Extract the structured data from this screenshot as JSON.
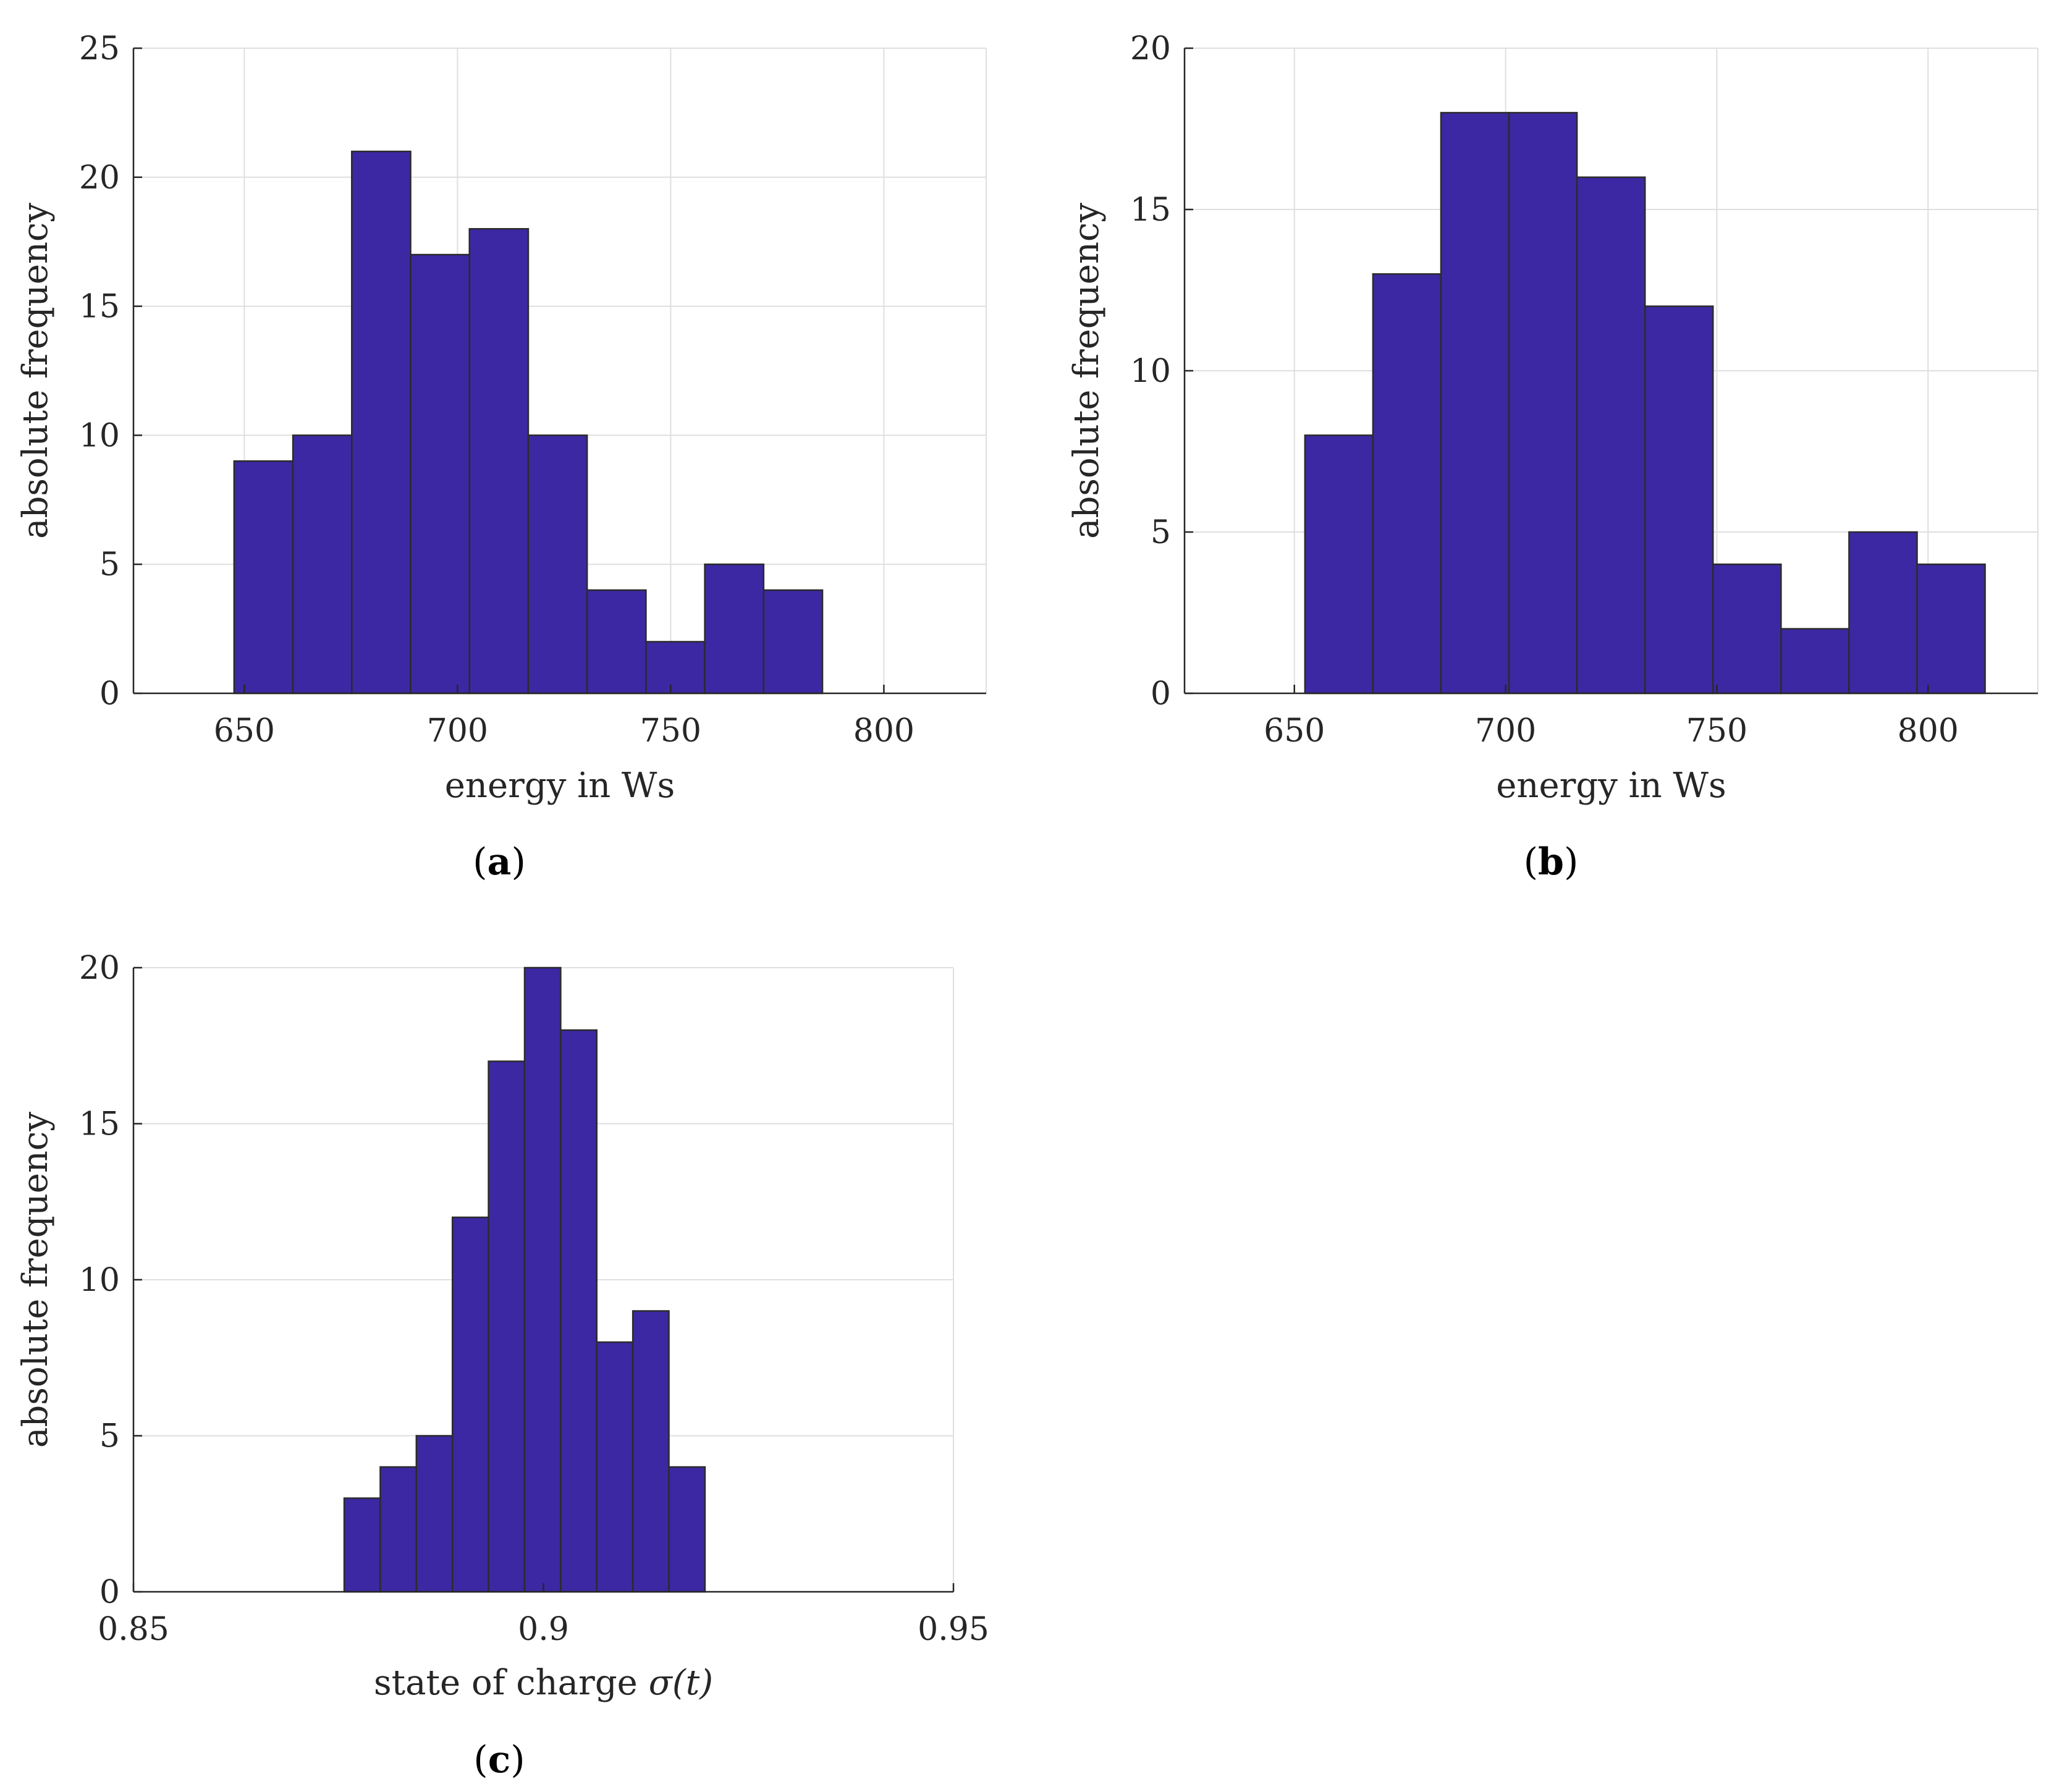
{
  "chart_data": [
    {
      "id": "a",
      "type": "bar",
      "subtype": "histogram",
      "panel_label": "a",
      "xlabel": "energy in Ws",
      "ylabel": "absolute frequency",
      "xlim": [
        624,
        824
      ],
      "ylim": [
        0,
        25
      ],
      "xticks": [
        650,
        700,
        750,
        800
      ],
      "xtick_labels": [
        "650",
        "700",
        "750",
        "800"
      ],
      "yticks": [
        0,
        5,
        10,
        15,
        20,
        25
      ],
      "ytick_labels": [
        "0",
        "5",
        "10",
        "15",
        "20",
        "25"
      ],
      "grid": true,
      "bin_edges": [
        647.6,
        661.4,
        675.2,
        689.0,
        702.8,
        716.6,
        730.4,
        744.2,
        758.0,
        771.8,
        785.6
      ],
      "values": [
        9,
        10,
        21,
        17,
        18,
        10,
        4,
        2,
        5,
        4
      ]
    },
    {
      "id": "b",
      "type": "bar",
      "subtype": "histogram",
      "panel_label": "b",
      "xlabel": "energy in Ws",
      "ylabel": "absolute frequency",
      "xlim": [
        624,
        826
      ],
      "ylim": [
        0,
        20
      ],
      "xticks": [
        650,
        700,
        750,
        800
      ],
      "xtick_labels": [
        "650",
        "700",
        "750",
        "800"
      ],
      "yticks": [
        0,
        5,
        10,
        15,
        20
      ],
      "ytick_labels": [
        "0",
        "5",
        "10",
        "15",
        "20"
      ],
      "grid": true,
      "bin_edges": [
        652.5,
        668.6,
        684.7,
        700.8,
        716.9,
        733.0,
        749.1,
        765.2,
        781.3,
        797.4,
        813.5
      ],
      "values": [
        8,
        13,
        18,
        18,
        16,
        12,
        4,
        2,
        5,
        4
      ]
    },
    {
      "id": "c",
      "type": "bar",
      "subtype": "histogram",
      "panel_label": "c",
      "xlabel": "state of charge σ(t)",
      "xlabel_prefix": "state of charge ",
      "xlabel_symbol": "σ(t)",
      "ylabel": "absolute frequency",
      "xlim": [
        0.85,
        0.95
      ],
      "ylim": [
        0,
        20
      ],
      "xticks": [
        0.85,
        0.9,
        0.95
      ],
      "xtick_labels": [
        "0.85",
        "0.9",
        "0.95"
      ],
      "yticks": [
        0,
        5,
        10,
        15,
        20
      ],
      "ytick_labels": [
        "0",
        "5",
        "10",
        "15",
        "20"
      ],
      "grid": true,
      "bin_edges": [
        0.8757,
        0.8801,
        0.8845,
        0.8889,
        0.8933,
        0.8977,
        0.9021,
        0.9065,
        0.9109,
        0.9153,
        0.9197
      ],
      "values": [
        3,
        4,
        5,
        12,
        17,
        20,
        18,
        8,
        9,
        4
      ]
    }
  ],
  "colors": {
    "bar_fill": "#3c28a2",
    "bar_edge": "#2b2b2b",
    "grid": "#dfdfdf",
    "axis": "#262626"
  }
}
